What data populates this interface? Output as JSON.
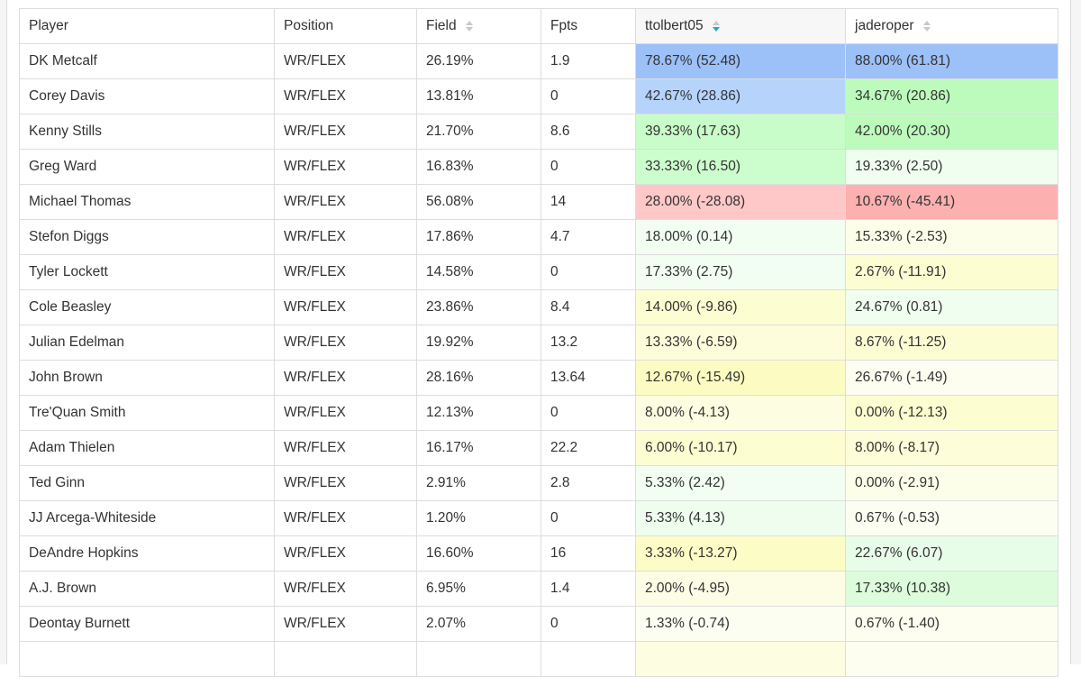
{
  "columns": {
    "player": "Player",
    "position": "Position",
    "field": "Field",
    "fpts": "Fpts",
    "user1": "ttolbert05",
    "user2": "jaderoper"
  },
  "rows": [
    {
      "player": "DK Metcalf",
      "position": "WR/FLEX",
      "field": "26.19%",
      "fpts": "1.9",
      "u1": "78.67% (52.48)",
      "u1_color": "#9cc0f8",
      "u2": "88.00% (61.81)",
      "u2_color": "#9cc0f8"
    },
    {
      "player": "Corey Davis",
      "position": "WR/FLEX",
      "field": "13.81%",
      "fpts": "0",
      "u1": "42.67% (28.86)",
      "u1_color": "#b6d4fb",
      "u2": "34.67% (20.86)",
      "u2_color": "#bdfbbd"
    },
    {
      "player": "Kenny Stills",
      "position": "WR/FLEX",
      "field": "21.70%",
      "fpts": "8.6",
      "u1": "39.33% (17.63)",
      "u1_color": "#c8fcc8",
      "u2": "42.00% (20.30)",
      "u2_color": "#bdfbbd"
    },
    {
      "player": "Greg Ward",
      "position": "WR/FLEX",
      "field": "16.83%",
      "fpts": "0",
      "u1": "33.33% (16.50)",
      "u1_color": "#ccfdcc",
      "u2": "19.33% (2.50)",
      "u2_color": "#f0fef0"
    },
    {
      "player": "Michael Thomas",
      "position": "WR/FLEX",
      "field": "56.08%",
      "fpts": "14",
      "u1": "28.00% (-28.08)",
      "u1_color": "#fec8c8",
      "u2": "10.67% (-45.41)",
      "u2_color": "#fdb0b0"
    },
    {
      "player": "Stefon Diggs",
      "position": "WR/FLEX",
      "field": "17.86%",
      "fpts": "4.7",
      "u1": "18.00% (0.14)",
      "u1_color": "#f1fef1",
      "u2": "15.33% (-2.53)",
      "u2_color": "#fdfeea"
    },
    {
      "player": "Tyler Lockett",
      "position": "WR/FLEX",
      "field": "14.58%",
      "fpts": "0",
      "u1": "17.33% (2.75)",
      "u1_color": "#f1fef1",
      "u2": "2.67% (-11.91)",
      "u2_color": "#fdfdd2"
    },
    {
      "player": "Cole Beasley",
      "position": "WR/FLEX",
      "field": "23.86%",
      "fpts": "8.4",
      "u1": "14.00% (-9.86)",
      "u1_color": "#fdfdd2",
      "u2": "24.67% (0.81)",
      "u2_color": "#f0fef0"
    },
    {
      "player": "Julian Edelman",
      "position": "WR/FLEX",
      "field": "19.92%",
      "fpts": "13.2",
      "u1": "13.33% (-6.59)",
      "u1_color": "#fdfddb",
      "u2": "8.67% (-11.25)",
      "u2_color": "#fdfdd4"
    },
    {
      "player": "John Brown",
      "position": "WR/FLEX",
      "field": "28.16%",
      "fpts": "13.64",
      "u1": "12.67% (-15.49)",
      "u1_color": "#fcfcc2",
      "u2": "26.67% (-1.49)",
      "u2_color": "#fdfef0"
    },
    {
      "player": "Tre'Quan Smith",
      "position": "WR/FLEX",
      "field": "12.13%",
      "fpts": "0",
      "u1": "8.00% (-4.13)",
      "u1_color": "#fdfde1",
      "u2": "0.00% (-12.13)",
      "u2_color": "#fdfdd2"
    },
    {
      "player": "Adam Thielen",
      "position": "WR/FLEX",
      "field": "16.17%",
      "fpts": "22.2",
      "u1": "6.00% (-10.17)",
      "u1_color": "#fdfdd2",
      "u2": "8.00% (-8.17)",
      "u2_color": "#fdfdd9"
    },
    {
      "player": "Ted Ginn",
      "position": "WR/FLEX",
      "field": "2.91%",
      "fpts": "2.8",
      "u1": "5.33% (2.42)",
      "u1_color": "#f1fef1",
      "u2": "0.00% (-2.91)",
      "u2_color": "#fdfeea"
    },
    {
      "player": "JJ Arcega-Whiteside",
      "position": "WR/FLEX",
      "field": "1.20%",
      "fpts": "0",
      "u1": "5.33% (4.13)",
      "u1_color": "#eefdee",
      "u2": "0.67% (-0.53)",
      "u2_color": "#fdfef2"
    },
    {
      "player": "DeAndre Hopkins",
      "position": "WR/FLEX",
      "field": "16.60%",
      "fpts": "16",
      "u1": "3.33% (-13.27)",
      "u1_color": "#fcfcc6",
      "u2": "22.67% (6.07)",
      "u2_color": "#e7fde7"
    },
    {
      "player": "A.J. Brown",
      "position": "WR/FLEX",
      "field": "6.95%",
      "fpts": "1.4",
      "u1": "2.00% (-4.95)",
      "u1_color": "#fdfde6",
      "u2": "17.33% (10.38)",
      "u2_color": "#dcfcdc"
    },
    {
      "player": "Deontay Burnett",
      "position": "WR/FLEX",
      "field": "2.07%",
      "fpts": "0",
      "u1": "1.33% (-0.74)",
      "u1_color": "#fdfef2",
      "u2": "0.67% (-1.40)",
      "u2_color": "#fdfef0"
    },
    {
      "player": "",
      "position": "",
      "field": "",
      "fpts": "",
      "u1": "",
      "u1_color": "#fdfde1",
      "u2": "",
      "u2_color": "#fdfef0"
    }
  ]
}
